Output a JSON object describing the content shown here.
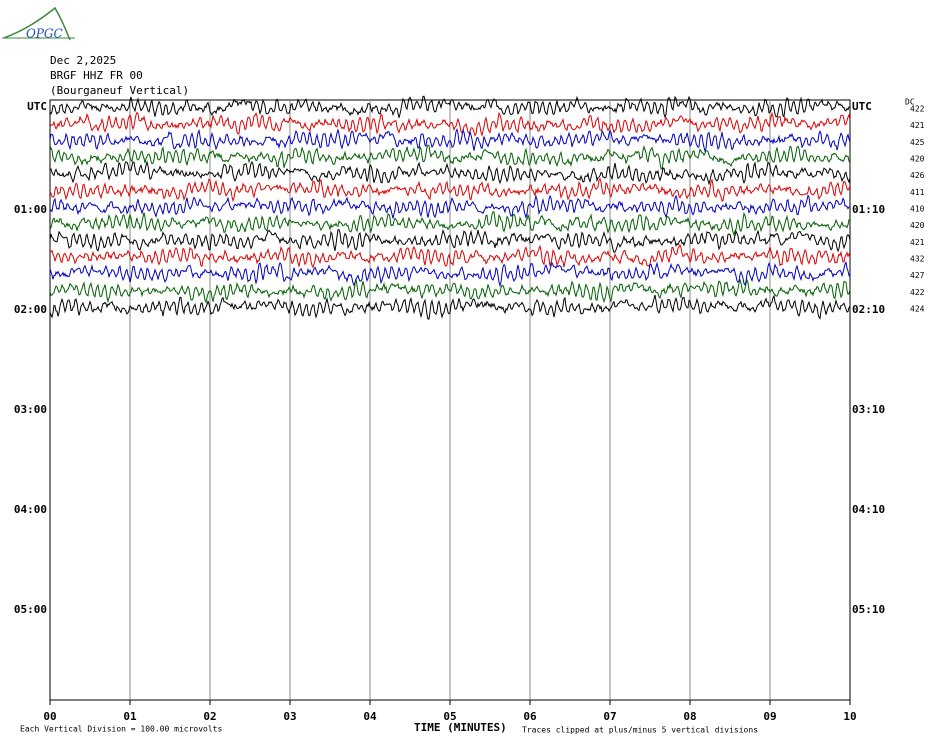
{
  "logo": "OPGC",
  "header": {
    "date": "Dec 2,2025",
    "station": "BRGF HHZ FR 00",
    "location": "(Bourganeuf Vertical)"
  },
  "left_labels": [
    "UTC",
    "01:00",
    "02:00",
    "03:00",
    "04:00",
    "05:00"
  ],
  "right_labels": [
    "UTC",
    "01:10",
    "02:10",
    "03:10",
    "04:10",
    "05:10"
  ],
  "dc_header": "DC",
  "traces": [
    {
      "color": "#000000",
      "dc": "422"
    },
    {
      "color": "#e00000",
      "dc": "421"
    },
    {
      "color": "#0000c0",
      "dc": "425"
    },
    {
      "color": "#006000",
      "dc": "420"
    },
    {
      "color": "#000000",
      "dc": "426"
    },
    {
      "color": "#e00000",
      "dc": "411"
    },
    {
      "color": "#0000c0",
      "dc": "410"
    },
    {
      "color": "#006000",
      "dc": "420"
    },
    {
      "color": "#000000",
      "dc": "421"
    },
    {
      "color": "#e00000",
      "dc": "432"
    },
    {
      "color": "#0000c0",
      "dc": "427"
    },
    {
      "color": "#006000",
      "dc": "422"
    },
    {
      "color": "#000000",
      "dc": "424"
    }
  ],
  "x_axis": {
    "ticks": [
      "00",
      "01",
      "02",
      "03",
      "04",
      "05",
      "06",
      "07",
      "08",
      "09",
      "10"
    ],
    "label": "TIME (MINUTES)"
  },
  "footer": {
    "scale": "Each Vertical Division =  100.00 microvolts",
    "clip": "Traces clipped at plus/minus 5 vertical divisions"
  }
}
